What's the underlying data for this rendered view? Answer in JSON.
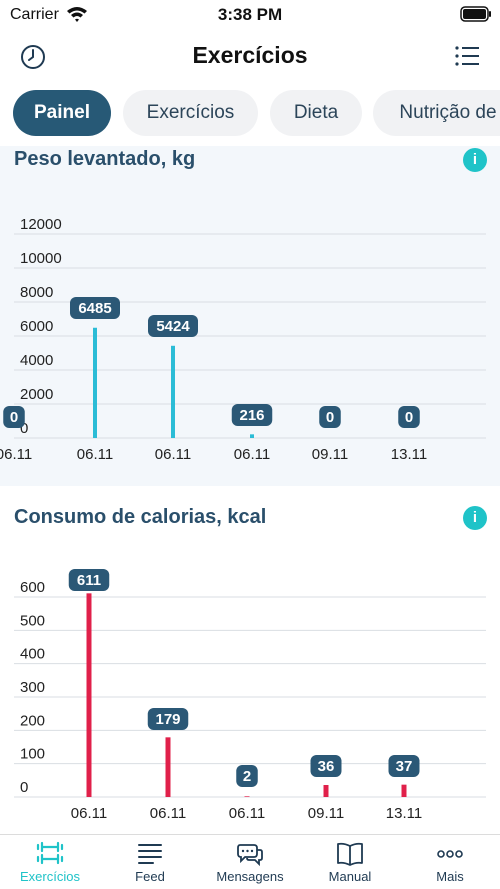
{
  "status_bar": {
    "carrier": "Carrier",
    "time": "3:38 PM"
  },
  "header": {
    "title": "Exercícios"
  },
  "tabs": [
    {
      "label": "Painel",
      "active": true
    },
    {
      "label": "Exercícios",
      "active": false
    },
    {
      "label": "Dieta",
      "active": false
    },
    {
      "label": "Nutrição de",
      "active": false
    }
  ],
  "colors": {
    "accent": "#1fc3c8",
    "primary": "#275976",
    "weight_bar": "#2bbcd6",
    "calorie_bar": "#e0204a"
  },
  "chart_data": [
    {
      "type": "bar",
      "title": "Peso levantado, kg",
      "categories": [
        "06.11",
        "06.11",
        "06.11",
        "06.11",
        "09.11",
        "13.11"
      ],
      "values": [
        0,
        6485,
        5424,
        216,
        0,
        0
      ],
      "data_labels": [
        "0",
        "6485",
        "5424",
        "216",
        "0",
        "0"
      ],
      "ylim": [
        0,
        12000
      ],
      "yticks": [
        0,
        2000,
        4000,
        6000,
        8000,
        10000,
        12000
      ],
      "ytick_labels": [
        "0",
        "2000",
        "4000",
        "6000",
        "8000",
        "10000",
        "12000"
      ],
      "grid": true
    },
    {
      "type": "bar",
      "title": "Consumo de calorias, kcal",
      "categories": [
        "06.11",
        "06.11",
        "06.11",
        "09.11",
        "13.11"
      ],
      "values": [
        611,
        179,
        2,
        36,
        37
      ],
      "data_labels": [
        "611",
        "179",
        "2",
        "36",
        "37"
      ],
      "ylim": [
        0,
        600
      ],
      "yticks": [
        0,
        100,
        200,
        300,
        400,
        500,
        600
      ],
      "ytick_labels": [
        "0",
        "100",
        "200",
        "300",
        "400",
        "500",
        "600"
      ],
      "grid": true
    }
  ],
  "bottom_nav": [
    {
      "label": "Exercícios",
      "icon": "dumbbell-icon",
      "active": true
    },
    {
      "label": "Feed",
      "icon": "feed-icon",
      "active": false
    },
    {
      "label": "Mensagens",
      "icon": "messages-icon",
      "active": false
    },
    {
      "label": "Manual",
      "icon": "book-icon",
      "active": false
    },
    {
      "label": "Mais",
      "icon": "more-icon",
      "active": false
    }
  ]
}
